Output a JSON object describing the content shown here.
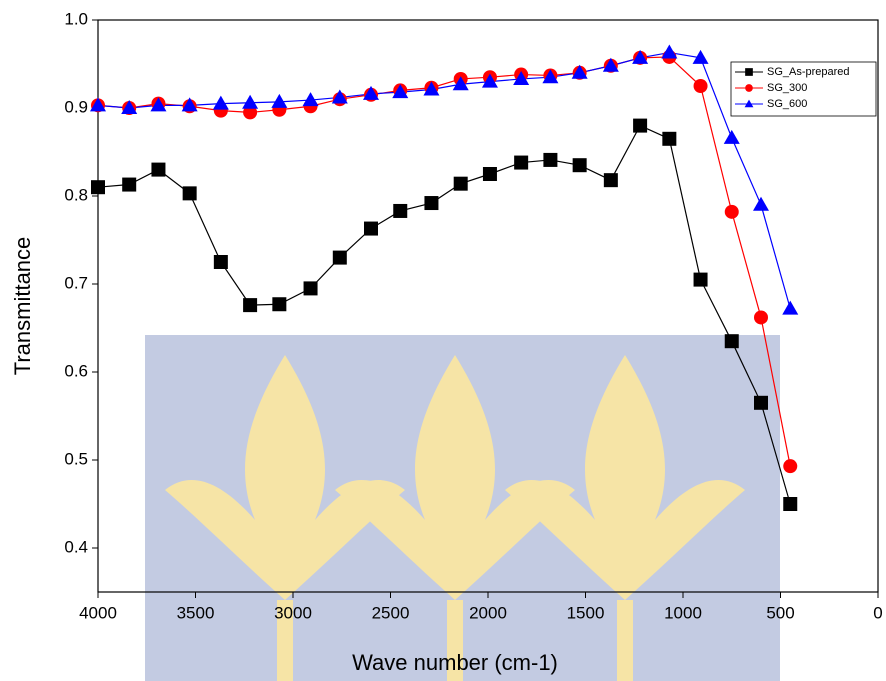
{
  "chart_data": {
    "type": "line",
    "xlabel": "Wave number (cm-1)",
    "ylabel": "Transmittance",
    "x": [
      4000,
      3840,
      3690,
      3530,
      3370,
      3220,
      3070,
      2910,
      2760,
      2600,
      2450,
      2290,
      2140,
      1990,
      1830,
      1680,
      1530,
      1370,
      1220,
      1070,
      910,
      750,
      600,
      450
    ],
    "series": [
      {
        "name": "SG_As-prepared",
        "color": "#000000",
        "marker": "square",
        "values": [
          0.81,
          0.813,
          0.83,
          0.803,
          0.725,
          0.676,
          0.677,
          0.695,
          0.73,
          0.763,
          0.783,
          0.792,
          0.814,
          0.825,
          0.838,
          0.841,
          0.835,
          0.818,
          0.88,
          0.865,
          0.705,
          0.635,
          0.565,
          0.45
        ]
      },
      {
        "name": "SG_300",
        "color": "#ff0000",
        "marker": "circle",
        "values": [
          0.903,
          0.9,
          0.905,
          0.902,
          0.897,
          0.895,
          0.898,
          0.902,
          0.91,
          0.915,
          0.92,
          0.923,
          0.933,
          0.935,
          0.938,
          0.937,
          0.94,
          0.948,
          0.957,
          0.958,
          0.925,
          0.782,
          0.662,
          0.493
        ]
      },
      {
        "name": "SG_600",
        "color": "#0000ff",
        "marker": "triangle",
        "values": [
          0.903,
          0.9,
          0.903,
          0.903,
          0.905,
          0.906,
          0.907,
          0.909,
          0.912,
          0.916,
          0.918,
          0.921,
          0.927,
          0.93,
          0.933,
          0.935,
          0.94,
          0.948,
          0.957,
          0.963,
          0.957,
          0.866,
          0.79,
          0.672
        ]
      }
    ],
    "xlim": [
      4000,
      0
    ],
    "xticks": [
      4000,
      3500,
      3000,
      2500,
      2000,
      1500,
      1000,
      500,
      0
    ],
    "ylim": [
      0.35,
      1.0
    ],
    "yticks": [
      0.4,
      0.5,
      0.6,
      0.7,
      0.8,
      0.9,
      {
        "value": 1,
        "label": "1.0"
      }
    ],
    "legend": "upper right"
  }
}
